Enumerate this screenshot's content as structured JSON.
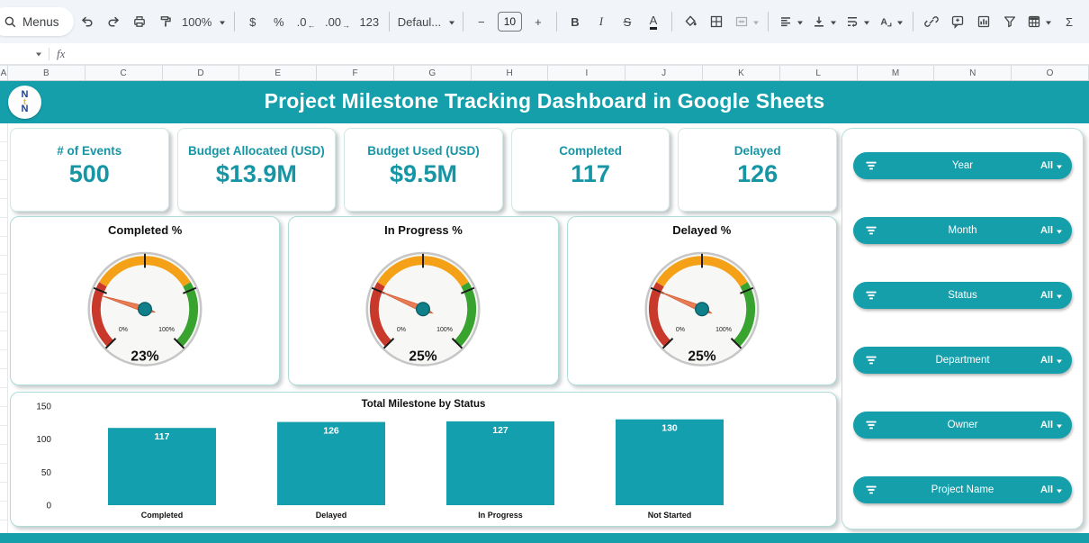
{
  "colors": {
    "teal": "#149fab",
    "kpi_text": "#1695a5",
    "bar": "#149fae",
    "gauge_red": "#c8392c",
    "gauge_orange": "#f4a118",
    "gauge_green": "#38a32f",
    "needle": "#e97e55",
    "needle_stroke": "#d2603b",
    "hub": "#0f7f8a"
  },
  "toolbar": {
    "items": [
      {
        "kind": "pill",
        "name": "menus",
        "label": "Menus"
      },
      {
        "kind": "icon",
        "name": "undo"
      },
      {
        "kind": "icon",
        "name": "redo"
      },
      {
        "kind": "icon",
        "name": "print"
      },
      {
        "kind": "icon",
        "name": "paint-format"
      },
      {
        "kind": "select",
        "name": "zoom",
        "label": "100%"
      },
      {
        "kind": "divider"
      },
      {
        "kind": "text",
        "name": "format-as-currency",
        "label": "$"
      },
      {
        "kind": "text",
        "name": "format-as-percent",
        "label": "%"
      },
      {
        "kind": "text",
        "name": "decrease-decimal-places",
        "label": ".0",
        "sub": "←"
      },
      {
        "kind": "text",
        "name": "increase-decimal-places",
        "label": ".00",
        "sub": "→"
      },
      {
        "kind": "text",
        "name": "more-formats",
        "label": "123"
      },
      {
        "kind": "divider"
      },
      {
        "kind": "select",
        "name": "font",
        "label": "Defaul..."
      },
      {
        "kind": "divider"
      },
      {
        "kind": "text",
        "name": "decrease-font-size",
        "label": "−"
      },
      {
        "kind": "sizebox",
        "name": "font-size",
        "label": "10"
      },
      {
        "kind": "text",
        "name": "increase-font-size",
        "label": "+"
      },
      {
        "kind": "divider"
      },
      {
        "kind": "text",
        "name": "bold",
        "label": "B",
        "cls": "bold"
      },
      {
        "kind": "text",
        "name": "italic",
        "label": "I",
        "cls": "italic"
      },
      {
        "kind": "text",
        "name": "strikethrough",
        "label": "S",
        "cls": "strike"
      },
      {
        "kind": "text",
        "name": "text-color",
        "label": "A",
        "cls": "acolor"
      },
      {
        "kind": "divider"
      },
      {
        "kind": "icon",
        "name": "fill-color"
      },
      {
        "kind": "icon",
        "name": "borders"
      },
      {
        "kind": "icon",
        "name": "merge-cells",
        "caret": true,
        "disabled": true
      },
      {
        "kind": "divider"
      },
      {
        "kind": "icon",
        "name": "horizontal-align",
        "caret": true
      },
      {
        "kind": "icon",
        "name": "vertical-align",
        "caret": true
      },
      {
        "kind": "icon",
        "name": "text-wrap",
        "caret": true
      },
      {
        "kind": "icon",
        "name": "text-rotation",
        "caret": true
      },
      {
        "kind": "divider"
      },
      {
        "kind": "icon",
        "name": "insert-link"
      },
      {
        "kind": "icon",
        "name": "insert-comment"
      },
      {
        "kind": "icon",
        "name": "insert-chart"
      },
      {
        "kind": "icon",
        "name": "create-filter"
      },
      {
        "kind": "icon",
        "name": "table-views",
        "caret": true
      },
      {
        "kind": "text",
        "name": "functions",
        "label": "Σ"
      }
    ]
  },
  "formula_bar": {
    "fx_label": "fx"
  },
  "sheet": {
    "column_headers": [
      "A",
      "B",
      "C",
      "D",
      "E",
      "F",
      "G",
      "H",
      "I",
      "J",
      "K",
      "L",
      "M",
      "N",
      "O"
    ]
  },
  "banner": {
    "title": "Project Milestone Tracking Dashboard in Google Sheets",
    "logo_letters": [
      "N",
      "t",
      "N"
    ]
  },
  "kpi_cards": [
    {
      "label": "# of Events",
      "value": "500"
    },
    {
      "label": "Budget Allocated (USD)",
      "value": "$13.9M"
    },
    {
      "label": "Budget Used (USD)",
      "value": "$9.5M"
    },
    {
      "label": "Completed",
      "value": "117"
    },
    {
      "label": "Delayed",
      "value": "126"
    }
  ],
  "filters": {
    "items": [
      {
        "label": "Year",
        "value": "All"
      },
      {
        "label": "Month",
        "value": "All"
      },
      {
        "label": "Status",
        "value": "All"
      },
      {
        "label": "Department",
        "value": "All"
      },
      {
        "label": "Owner",
        "value": "All"
      },
      {
        "label": "Project Name",
        "value": "All"
      }
    ]
  },
  "chart_data": [
    {
      "type": "gauge",
      "title": "Completed %",
      "value": 23,
      "display": "23%",
      "min": 0,
      "max": 100,
      "min_label": "0%",
      "max_label": "100%",
      "zones": [
        {
          "from": 0,
          "to": 28,
          "color": "#c8392c"
        },
        {
          "from": 28,
          "to": 72,
          "color": "#f4a118"
        },
        {
          "from": 72,
          "to": 100,
          "color": "#38a32f"
        }
      ],
      "ticks": [
        0,
        25,
        50,
        75,
        100
      ]
    },
    {
      "type": "gauge",
      "title": "In Progress %",
      "value": 25,
      "display": "25%",
      "min": 0,
      "max": 100,
      "min_label": "0%",
      "max_label": "100%",
      "zones": [
        {
          "from": 0,
          "to": 28,
          "color": "#c8392c"
        },
        {
          "from": 28,
          "to": 72,
          "color": "#f4a118"
        },
        {
          "from": 72,
          "to": 100,
          "color": "#38a32f"
        }
      ],
      "ticks": [
        0,
        25,
        50,
        75,
        100
      ]
    },
    {
      "type": "gauge",
      "title": "Delayed %",
      "value": 25,
      "display": "25%",
      "min": 0,
      "max": 100,
      "min_label": "0%",
      "max_label": "100%",
      "zones": [
        {
          "from": 0,
          "to": 28,
          "color": "#c8392c"
        },
        {
          "from": 28,
          "to": 72,
          "color": "#f4a118"
        },
        {
          "from": 72,
          "to": 100,
          "color": "#38a32f"
        }
      ],
      "ticks": [
        0,
        25,
        50,
        75,
        100
      ]
    },
    {
      "type": "bar",
      "title": "Total Milestone by Status",
      "categories": [
        "Completed",
        "Delayed",
        "In Progress",
        "Not Started"
      ],
      "values": [
        117,
        126,
        127,
        130
      ],
      "ylim": [
        0,
        150
      ],
      "yticks": [
        0,
        50,
        100,
        150
      ],
      "bar_color": "#149fae",
      "value_label_color": "#ffffff",
      "grid": false,
      "legend": "none"
    }
  ]
}
